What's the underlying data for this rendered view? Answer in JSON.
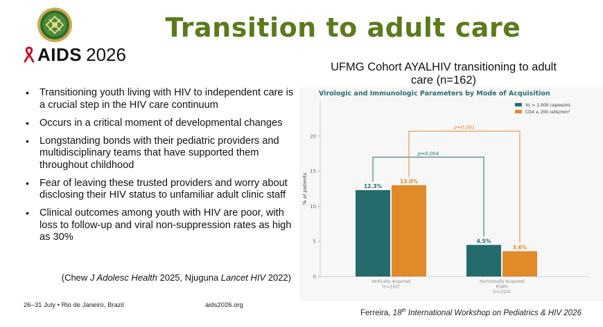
{
  "header": {
    "logo_seal": "aids2026-seal-icon",
    "logo_text_aids": "AIDS",
    "logo_text_year": "2026",
    "title": "Transition to adult care"
  },
  "bullets": [
    "Transitioning youth living with HIV to independent care is a crucial step in the HIV care continuum",
    "Occurs in a critical moment of developmental changes",
    "Longstanding bonds with their pediatric providers and multidisciplinary teams that have supported them throughout childhood",
    "Fear of leaving these trusted providers and worry about disclosing their HIV status to unfamiliar adult clinic staff",
    "Clinical outcomes among youth with HIV are poor, with loss to follow-up and viral non-suppression rates as high as 30%"
  ],
  "citation": {
    "open": "(Chew ",
    "journal1": "J Adolesc Health",
    "mid": " 2025, Njuguna ",
    "journal2": "Lancet HIV",
    "close": " 2022)"
  },
  "cohort_title": "UFMG Cohort AYALHIV transitioning to adult care (n=162)",
  "footer": {
    "dates": "26–31 July",
    "bullet": "•",
    "location": "Rio de Janeiro, Brazil",
    "website": "aids2026.org",
    "ref_author": "Ferreira, ",
    "ref_ordinal": "18",
    "ref_ordinal_suffix": "th",
    "ref_event": " International Workshop on Pediatrics & HIV 2026"
  },
  "colors": {
    "title_green": "#5c7a1c",
    "teal": "#246b6b",
    "orange": "#e08a2a",
    "ribbon_red": "#c8102e"
  },
  "chart_data": {
    "type": "bar",
    "title": "Virologic and Immunologic Parameters by Mode of Acquisition",
    "ylabel": "% of patients",
    "ylim": [
      0,
      25
    ],
    "yticks": [
      0,
      5,
      10,
      15,
      20
    ],
    "categories": [
      "Vertically Acquired (n=162)",
      "Horizontally Acquired PLWH (n=224)"
    ],
    "category_lines": [
      [
        "Vertically Acquired",
        "(n=162)"
      ],
      [
        "Horizontally Acquired",
        "PLWH",
        "(n=224)"
      ]
    ],
    "series": [
      {
        "name": "VL > 1.000 copies/mL",
        "values": [
          12.3,
          4.5
        ],
        "labels": [
          "12.3%",
          "4.5%"
        ],
        "color": "#246b6b"
      },
      {
        "name": "CD4 ≤ 200 cells/mm³",
        "values": [
          13.0,
          3.6
        ],
        "labels": [
          "13.0%",
          "3.6%"
        ],
        "color": "#e08a2a"
      }
    ],
    "annotations": [
      {
        "text": "p=0.004",
        "series": 0,
        "bracket_y": 17.0
      },
      {
        "text": "p=0.001",
        "series": 1,
        "bracket_y": 20.7
      }
    ],
    "legend": "top-right",
    "grid": false
  }
}
